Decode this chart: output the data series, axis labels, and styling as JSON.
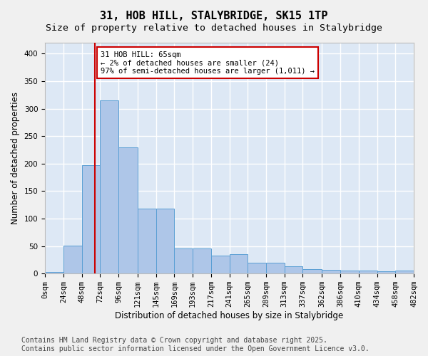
{
  "title": "31, HOB HILL, STALYBRIDGE, SK15 1TP",
  "subtitle": "Size of property relative to detached houses in Stalybridge",
  "xlabel": "Distribution of detached houses by size in Stalybridge",
  "ylabel": "Number of detached properties",
  "bar_color": "#aec6e8",
  "bar_edge_color": "#5a9fd4",
  "background_color": "#dde8f5",
  "grid_color": "#ffffff",
  "vline_x": 65,
  "vline_color": "#cc0000",
  "annotation_text": "31 HOB HILL: 65sqm\n← 2% of detached houses are smaller (24)\n97% of semi-detached houses are larger (1,011) →",
  "annotation_box_color": "#ffffff",
  "annotation_box_edge_color": "#cc0000",
  "bin_edges": [
    0,
    24,
    48,
    72,
    96,
    121,
    145,
    169,
    193,
    217,
    241,
    265,
    289,
    313,
    337,
    362,
    386,
    410,
    434,
    458,
    482
  ],
  "bin_labels": [
    "0sqm",
    "24sqm",
    "48sqm",
    "72sqm",
    "96sqm",
    "121sqm",
    "145sqm",
    "169sqm",
    "193sqm",
    "217sqm",
    "241sqm",
    "265sqm",
    "289sqm",
    "313sqm",
    "337sqm",
    "362sqm",
    "386sqm",
    "410sqm",
    "434sqm",
    "458sqm",
    "482sqm"
  ],
  "bar_heights": [
    3,
    51,
    197,
    315,
    229,
    118,
    118,
    45,
    45,
    33,
    35,
    20,
    20,
    13,
    8,
    7,
    5,
    5,
    4,
    5
  ],
  "ylim": [
    0,
    420
  ],
  "yticks": [
    0,
    50,
    100,
    150,
    200,
    250,
    300,
    350,
    400
  ],
  "footer_text": "Contains HM Land Registry data © Crown copyright and database right 2025.\nContains public sector information licensed under the Open Government Licence v3.0.",
  "title_fontsize": 11,
  "subtitle_fontsize": 9.5,
  "axis_label_fontsize": 8.5,
  "tick_fontsize": 7.5,
  "footer_fontsize": 7
}
